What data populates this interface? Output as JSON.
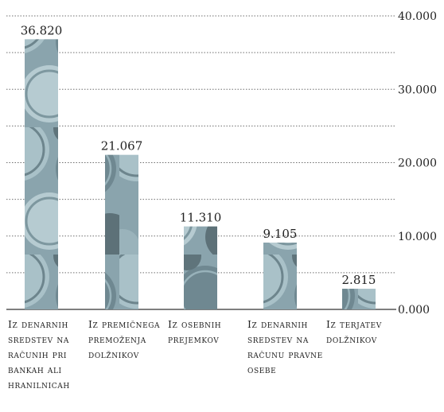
{
  "chart_data": {
    "type": "bar",
    "title": "",
    "xlabel": "",
    "ylabel": "",
    "ylim": [
      0,
      40000
    ],
    "yticks": [
      0,
      10000,
      20000,
      30000,
      40000
    ],
    "ytick_labels": [
      "0.000",
      "10.000",
      "20.000",
      "30.000",
      "40.000"
    ],
    "grid": true,
    "y_axis_position": "right",
    "categories": [
      "Iz denarnih sredstev na računih pri bankah ali hranilnicah",
      "Iz premičnega premoženja dolžnikov",
      "Iz osebnih prejemkov",
      "Iz denarnih sredstev na računu pravne osebe",
      "Iz terjatev dolžnikov"
    ],
    "values": [
      36820,
      21067,
      11310,
      9105,
      2815
    ],
    "value_labels": [
      "36.820",
      "21.067",
      "11.310",
      "9.105",
      "2.815"
    ],
    "bar_fill": "coin-photo texture",
    "colors": {
      "bar_light": "#a9c1c8",
      "bar_mid": "#7f9aa3",
      "bar_dark": "#55676e",
      "grid": "#6f6f6f",
      "text": "#222222"
    }
  }
}
